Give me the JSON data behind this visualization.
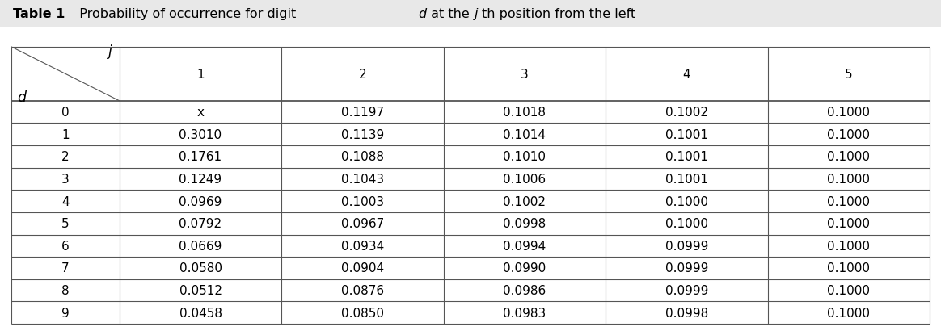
{
  "title_bold": "Table 1",
  "title_normal": "  Probability of occurrence for digit ",
  "title_italic_d": "d",
  "title_normal2": " at the ",
  "title_italic_j": "j",
  "title_normal3": "th position from the left",
  "col_headers": [
    "1",
    "2",
    "3",
    "4",
    "5"
  ],
  "row_headers": [
    "0",
    "1",
    "2",
    "3",
    "4",
    "5",
    "6",
    "7",
    "8",
    "9"
  ],
  "table_data": [
    [
      "x",
      "0.1197",
      "0.1018",
      "0.1002",
      "0.1000"
    ],
    [
      "0.3010",
      "0.1139",
      "0.1014",
      "0.1001",
      "0.1000"
    ],
    [
      "0.1761",
      "0.1088",
      "0.1010",
      "0.1001",
      "0.1000"
    ],
    [
      "0.1249",
      "0.1043",
      "0.1006",
      "0.1001",
      "0.1000"
    ],
    [
      "0.0969",
      "0.1003",
      "0.1002",
      "0.1000",
      "0.1000"
    ],
    [
      "0.0792",
      "0.0967",
      "0.0998",
      "0.1000",
      "0.1000"
    ],
    [
      "0.0669",
      "0.0934",
      "0.0994",
      "0.0999",
      "0.1000"
    ],
    [
      "0.0580",
      "0.0904",
      "0.0990",
      "0.0999",
      "0.1000"
    ],
    [
      "0.0512",
      "0.0876",
      "0.0986",
      "0.0999",
      "0.1000"
    ],
    [
      "0.0458",
      "0.0850",
      "0.0983",
      "0.0998",
      "0.1000"
    ]
  ],
  "header_j_label": "j",
  "header_d_label": "d",
  "bg_color": "#ffffff",
  "title_bg_color": "#e8e8e8",
  "line_color": "#555555",
  "text_color": "#000000",
  "title_color": "#000000",
  "font_size": 11.0,
  "title_font_size": 11.5
}
